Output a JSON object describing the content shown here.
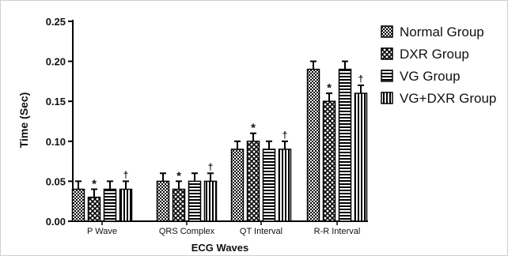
{
  "chart_data": {
    "type": "bar",
    "categories": [
      "P Wave",
      "QRS Complex",
      "QT Interval",
      "R-R Interval"
    ],
    "series": [
      {
        "name": "Normal Group",
        "values": [
          0.04,
          0.05,
          0.09,
          0.19
        ],
        "errors": [
          0.01,
          0.01,
          0.01,
          0.01
        ],
        "pattern": "checker",
        "markers": [
          "",
          "",
          "",
          ""
        ]
      },
      {
        "name": "DXR Group",
        "values": [
          0.03,
          0.04,
          0.1,
          0.15
        ],
        "errors": [
          0.01,
          0.01,
          0.01,
          0.01
        ],
        "pattern": "crosshatch",
        "markers": [
          "*",
          "*",
          "*",
          "*"
        ]
      },
      {
        "name": "VG Group",
        "values": [
          0.04,
          0.05,
          0.09,
          0.19
        ],
        "errors": [
          0.01,
          0.01,
          0.01,
          0.01
        ],
        "pattern": "horizontal",
        "markers": [
          "",
          "",
          "",
          ""
        ]
      },
      {
        "name": "VG+DXR Group",
        "values": [
          0.04,
          0.05,
          0.09,
          0.16
        ],
        "errors": [
          0.01,
          0.01,
          0.01,
          0.01
        ],
        "pattern": "vertical",
        "markers": [
          "†",
          "†",
          "†",
          "†"
        ]
      }
    ],
    "title": "",
    "xlabel": "ECG Waves",
    "ylabel": "Time (Sec)",
    "ylim": [
      0,
      0.25
    ],
    "yticks": [
      "0.00",
      "0.05",
      "0.10",
      "0.15",
      "0.20",
      "0.25"
    ],
    "grid": false,
    "legend": "right"
  }
}
